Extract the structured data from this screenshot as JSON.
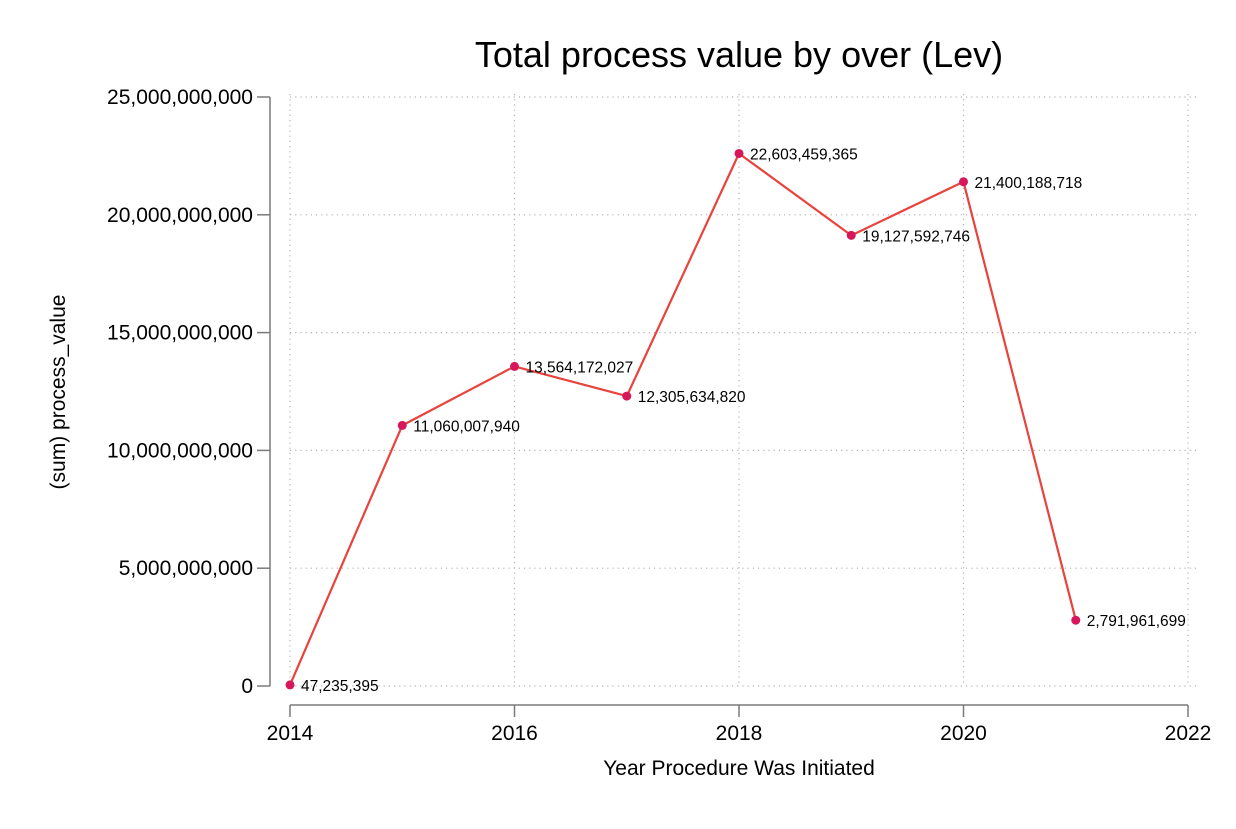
{
  "chart_data": {
    "type": "line",
    "title": "Total process value by over (Lev)",
    "xlabel": "Year Procedure Was Initiated",
    "ylabel": "(sum) process_value",
    "xlim": [
      2014,
      2022
    ],
    "ylim": [
      0,
      25000000000
    ],
    "x_ticks": [
      2014,
      2016,
      2018,
      2020,
      2022
    ],
    "x_tick_labels": [
      "2014",
      "2016",
      "2018",
      "2020",
      "2022"
    ],
    "y_ticks": [
      0,
      5000000000,
      10000000000,
      15000000000,
      20000000000,
      25000000000
    ],
    "y_tick_labels": [
      "0",
      "5,000,000,000",
      "10,000,000,000",
      "15,000,000,000",
      "20,000,000,000",
      "25,000,000,000"
    ],
    "grid": true,
    "legend": "none",
    "line_color": "#e8433c",
    "marker_color": "#d6175a",
    "series": [
      {
        "x": [
          2014,
          2015,
          2016,
          2017,
          2018,
          2019,
          2020,
          2021
        ],
        "values": [
          47235395,
          11060007940,
          13564172027,
          12305634820,
          22603459365,
          19127592746,
          21400188718,
          2791961699
        ],
        "labels": [
          "47,235,395",
          "11,060,007,940",
          "13,564,172,027",
          "12,305,634,820",
          "22,603,459,365",
          "19,127,592,746",
          "21,400,188,718",
          "2,791,961,699"
        ]
      }
    ]
  }
}
